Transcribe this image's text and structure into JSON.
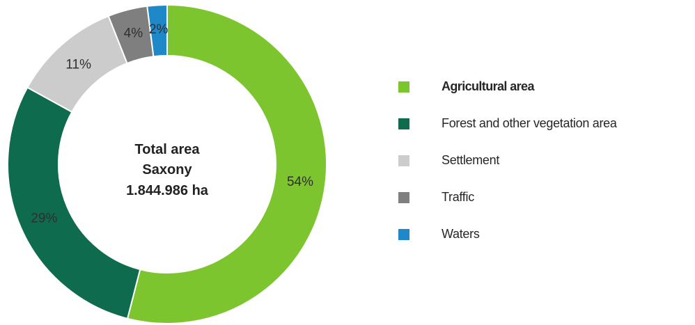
{
  "chart_data": {
    "type": "pie",
    "style": "donut",
    "center_text": [
      "Total area",
      "Saxony",
      "1.844.986 ha"
    ],
    "categories": [
      "Agricultural area",
      "Forest and other vegetation area",
      "Settlement",
      "Traffic",
      "Waters"
    ],
    "values": [
      54,
      29,
      11,
      4,
      2
    ],
    "value_labels": [
      "54%",
      "29%",
      "11%",
      "4%",
      "2%"
    ],
    "colors": [
      "#7dc52e",
      "#0e6b4d",
      "#cccccc",
      "#7f7f7f",
      "#1e88c9"
    ],
    "legend_position": "right"
  }
}
